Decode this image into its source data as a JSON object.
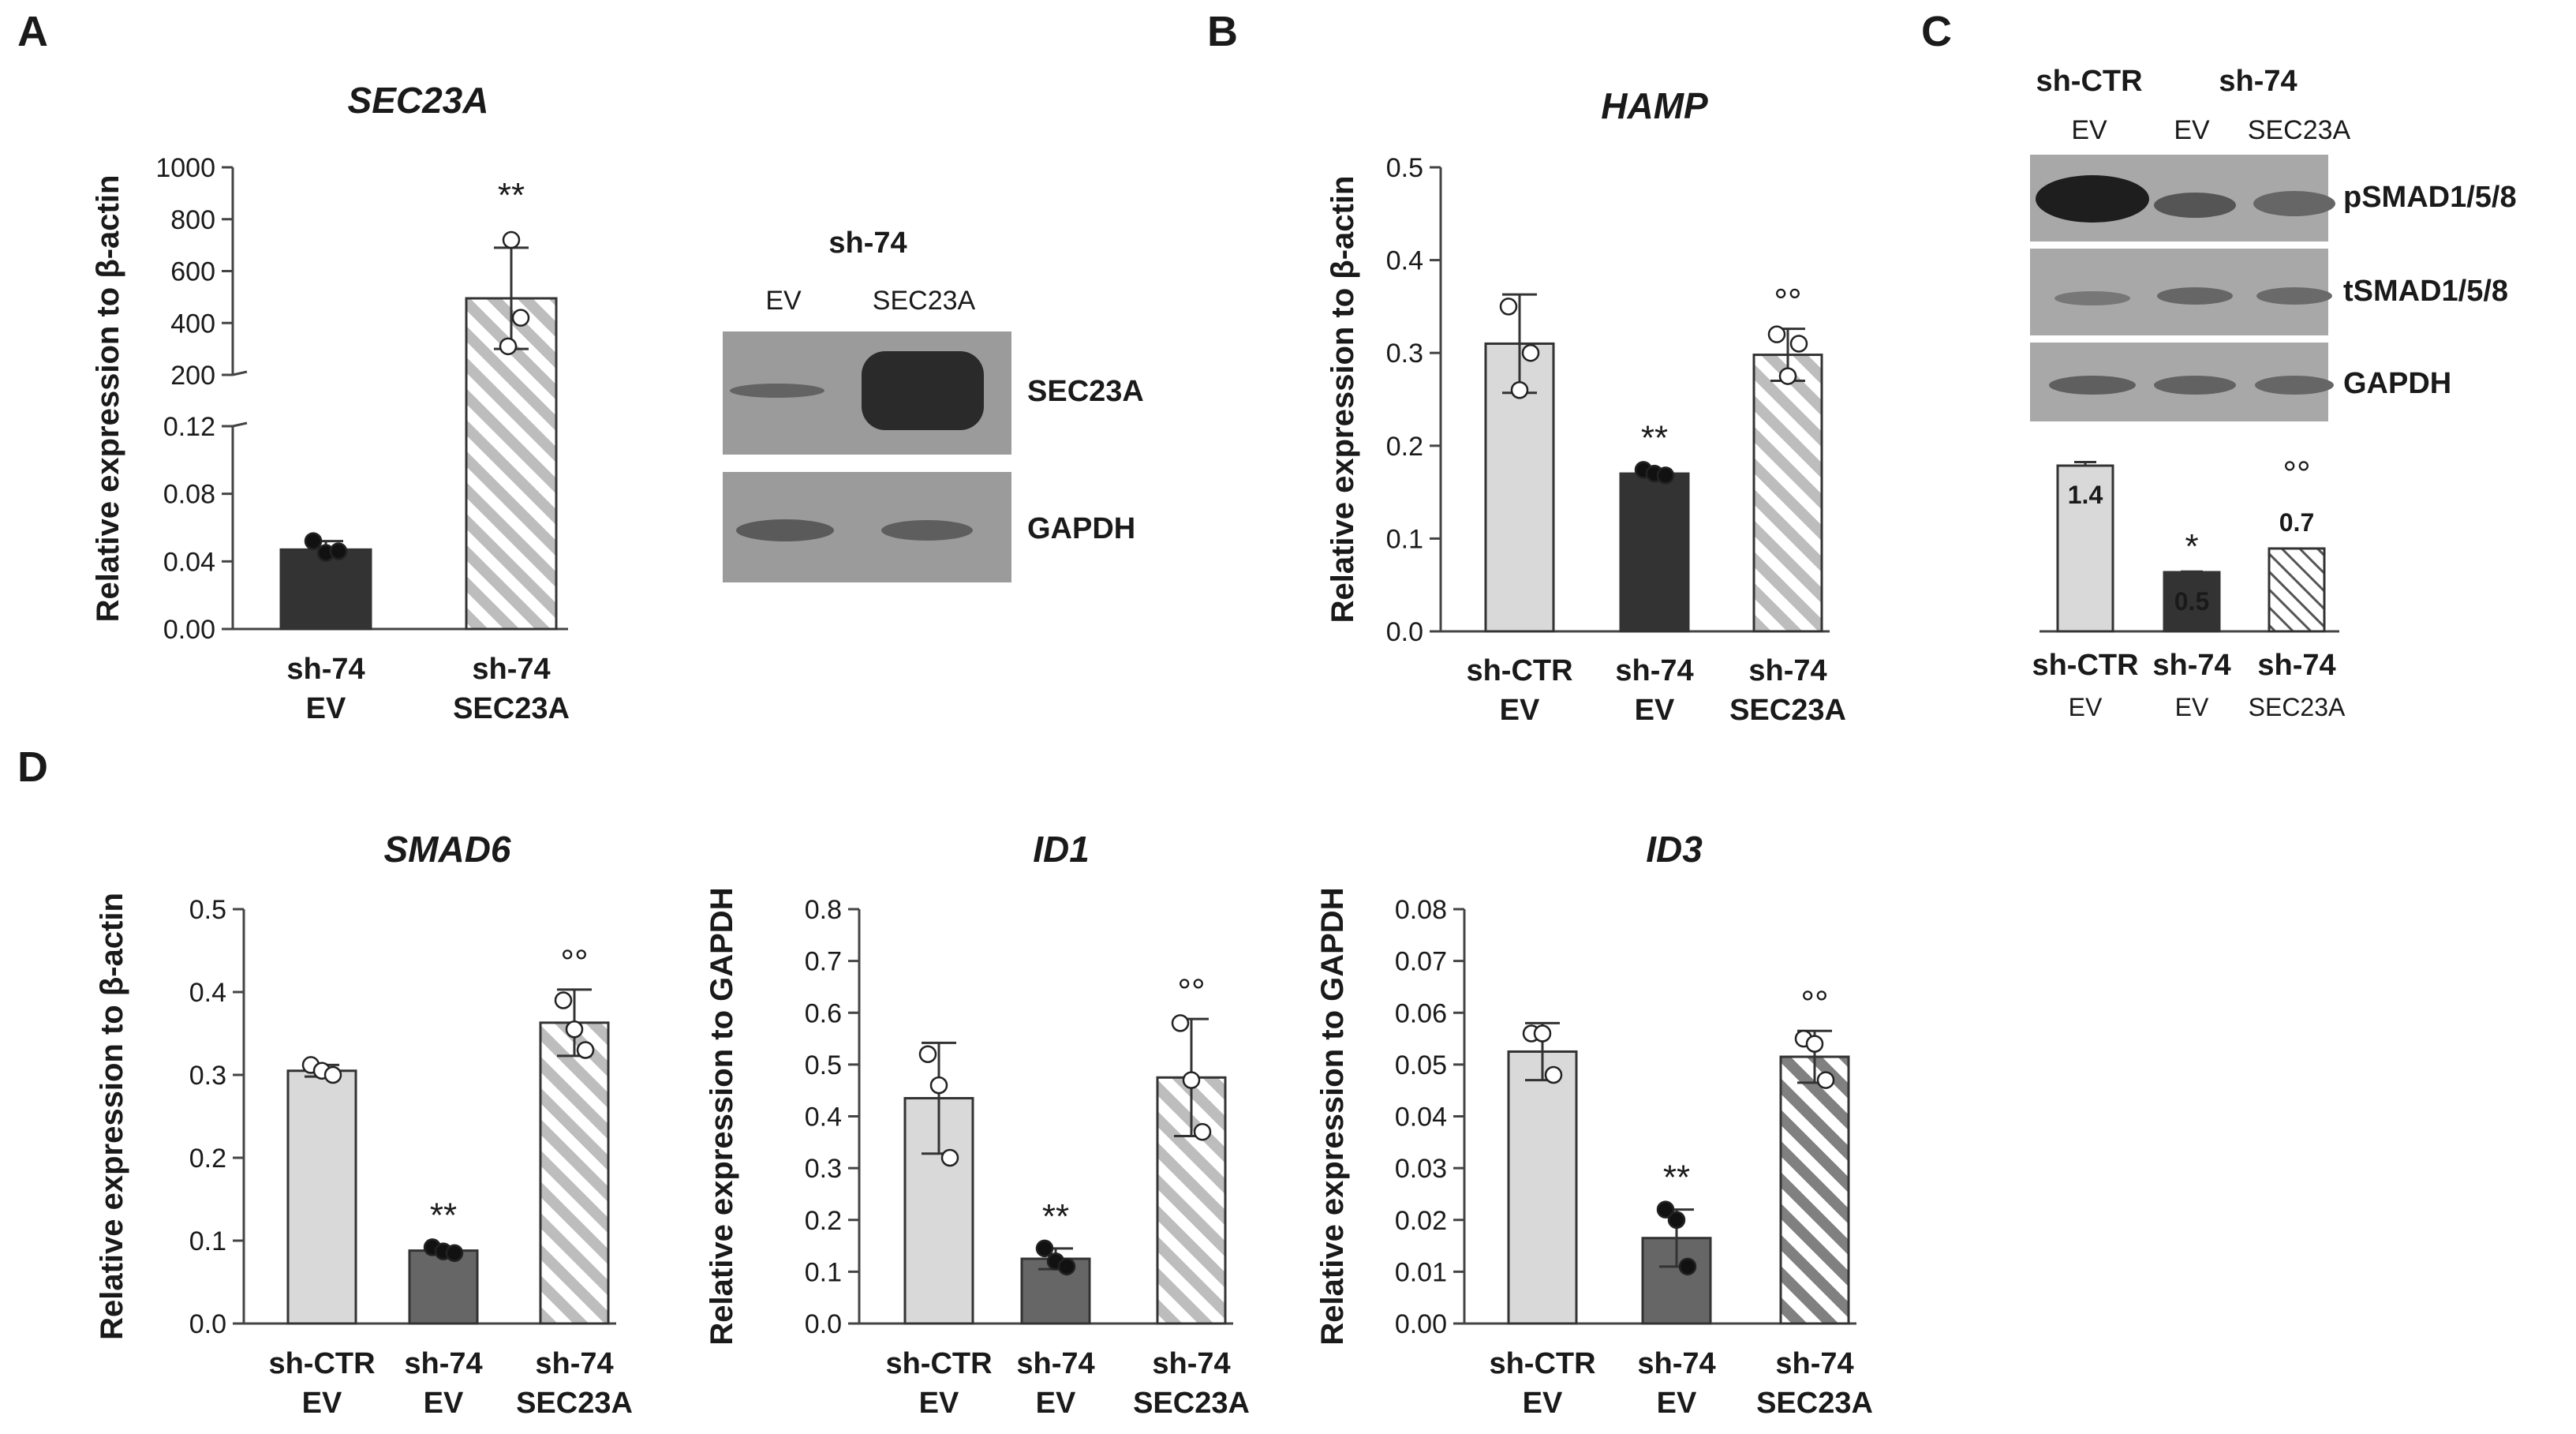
{
  "panels": {
    "A": "A",
    "B": "B",
    "C": "C",
    "D": "D"
  },
  "colors": {
    "light": "#d9d9d9",
    "dark": "#333333",
    "mid": "#666666",
    "stripe_light": "#bdbdbd",
    "stripe_dark": "#808080"
  },
  "chart_data": [
    {
      "id": "A",
      "type": "bar",
      "title": "SEC23A",
      "ylabel": "Relative expression to β-actin",
      "categories": [
        [
          "sh-74",
          "EV"
        ],
        [
          "sh-74",
          "SEC23A"
        ]
      ],
      "values": [
        0.047,
        495
      ],
      "errors": [
        0.005,
        195
      ],
      "points": [
        [
          0.052,
          0.045,
          0.046
        ],
        [
          720,
          420,
          310
        ]
      ],
      "ylim_lower": [
        0,
        0.12
      ],
      "ylim_upper": [
        200,
        1000
      ],
      "yticks_lower": [
        "0.00",
        "0.04",
        "0.08",
        "0.12"
      ],
      "yticks_upper": [
        "200",
        "400",
        "600",
        "800",
        "1000"
      ],
      "significance": [
        "",
        "**"
      ],
      "styles": [
        "dark",
        "stripe_light"
      ]
    },
    {
      "id": "B",
      "type": "bar",
      "title": "HAMP",
      "ylabel": "Relative expression to β-actin",
      "categories": [
        [
          "sh-CTR",
          "EV"
        ],
        [
          "sh-74",
          "EV"
        ],
        [
          "sh-74",
          "SEC23A"
        ]
      ],
      "values": [
        0.31,
        0.17,
        0.298
      ],
      "errors": [
        0.053,
        0.004,
        0.028
      ],
      "points": [
        [
          0.35,
          0.26,
          0.3
        ],
        [
          0.174,
          0.17,
          0.168
        ],
        [
          0.32,
          0.275,
          0.31
        ]
      ],
      "ylim": [
        0,
        0.5
      ],
      "yticks": [
        "0.0",
        "0.1",
        "0.2",
        "0.3",
        "0.4",
        "0.5"
      ],
      "significance": [
        "",
        "**",
        "°°"
      ],
      "styles": [
        "light",
        "dark",
        "stripe_light"
      ]
    },
    {
      "id": "C",
      "type": "bar",
      "categories": [
        [
          "sh-CTR",
          "EV"
        ],
        [
          "sh-74",
          "EV"
        ],
        [
          "sh-74",
          "SEC23A"
        ]
      ],
      "values": [
        1.4,
        0.5,
        0.7
      ],
      "value_labels": [
        "1.4",
        "0.5",
        "0.7"
      ],
      "errors": [
        0.03,
        0.005,
        0
      ],
      "ylim": [
        0,
        1.6
      ],
      "significance": [
        "",
        "*",
        "°°"
      ],
      "styles": [
        "light",
        "dark",
        "hatch"
      ]
    },
    {
      "id": "D1",
      "type": "bar",
      "title": "SMAD6",
      "ylabel": "Relative expression to β-actin",
      "categories": [
        [
          "sh-CTR",
          "EV"
        ],
        [
          "sh-74",
          "EV"
        ],
        [
          "sh-74",
          "SEC23A"
        ]
      ],
      "values": [
        0.305,
        0.088,
        0.363
      ],
      "errors": [
        0.007,
        0.003,
        0.04
      ],
      "points": [
        [
          0.312,
          0.305,
          0.3
        ],
        [
          0.092,
          0.087,
          0.085
        ],
        [
          0.39,
          0.355,
          0.33
        ]
      ],
      "ylim": [
        0,
        0.5
      ],
      "yticks": [
        "0.0",
        "0.1",
        "0.2",
        "0.3",
        "0.4",
        "0.5"
      ],
      "significance": [
        "",
        "**",
        "°°"
      ],
      "styles": [
        "light",
        "mid",
        "stripe_light"
      ]
    },
    {
      "id": "D2",
      "type": "bar",
      "title": "ID1",
      "ylabel": "Relative expression to GAPDH",
      "categories": [
        [
          "sh-CTR",
          "EV"
        ],
        [
          "sh-74",
          "EV"
        ],
        [
          "sh-74",
          "SEC23A"
        ]
      ],
      "values": [
        0.435,
        0.125,
        0.475
      ],
      "errors": [
        0.107,
        0.02,
        0.113
      ],
      "points": [
        [
          0.52,
          0.46,
          0.32
        ],
        [
          0.145,
          0.12,
          0.11
        ],
        [
          0.58,
          0.47,
          0.37
        ]
      ],
      "ylim": [
        0,
        0.8
      ],
      "yticks": [
        "0.0",
        "0.1",
        "0.2",
        "0.3",
        "0.4",
        "0.5",
        "0.6",
        "0.7",
        "0.8"
      ],
      "significance": [
        "",
        "**",
        "°°"
      ],
      "styles": [
        "light",
        "mid",
        "stripe_light"
      ]
    },
    {
      "id": "D3",
      "type": "bar",
      "title": "ID3",
      "ylabel": "Relative expression to GAPDH",
      "categories": [
        [
          "sh-CTR",
          "EV"
        ],
        [
          "sh-74",
          "EV"
        ],
        [
          "sh-74",
          "SEC23A"
        ]
      ],
      "values": [
        0.0525,
        0.0165,
        0.0515
      ],
      "errors": [
        0.0055,
        0.0055,
        0.005
      ],
      "points": [
        [
          0.056,
          0.056,
          0.048
        ],
        [
          0.022,
          0.02,
          0.011
        ],
        [
          0.055,
          0.054,
          0.047
        ]
      ],
      "ylim": [
        0,
        0.08
      ],
      "yticks": [
        "0.00",
        "0.01",
        "0.02",
        "0.03",
        "0.04",
        "0.05",
        "0.06",
        "0.07",
        "0.08"
      ],
      "significance": [
        "",
        "**",
        "°°"
      ],
      "styles": [
        "light",
        "mid",
        "stripe_dark"
      ]
    }
  ],
  "blots": {
    "A": {
      "header": "sh-74",
      "lanes": [
        "EV",
        "SEC23A"
      ],
      "rows": [
        "SEC23A",
        "GAPDH"
      ]
    },
    "C": {
      "groups": [
        "sh-CTR",
        "sh-74"
      ],
      "lanes": [
        "EV",
        "EV",
        "SEC23A"
      ],
      "rows": [
        "pSMAD1/5/8",
        "tSMAD1/5/8",
        "GAPDH"
      ]
    }
  }
}
